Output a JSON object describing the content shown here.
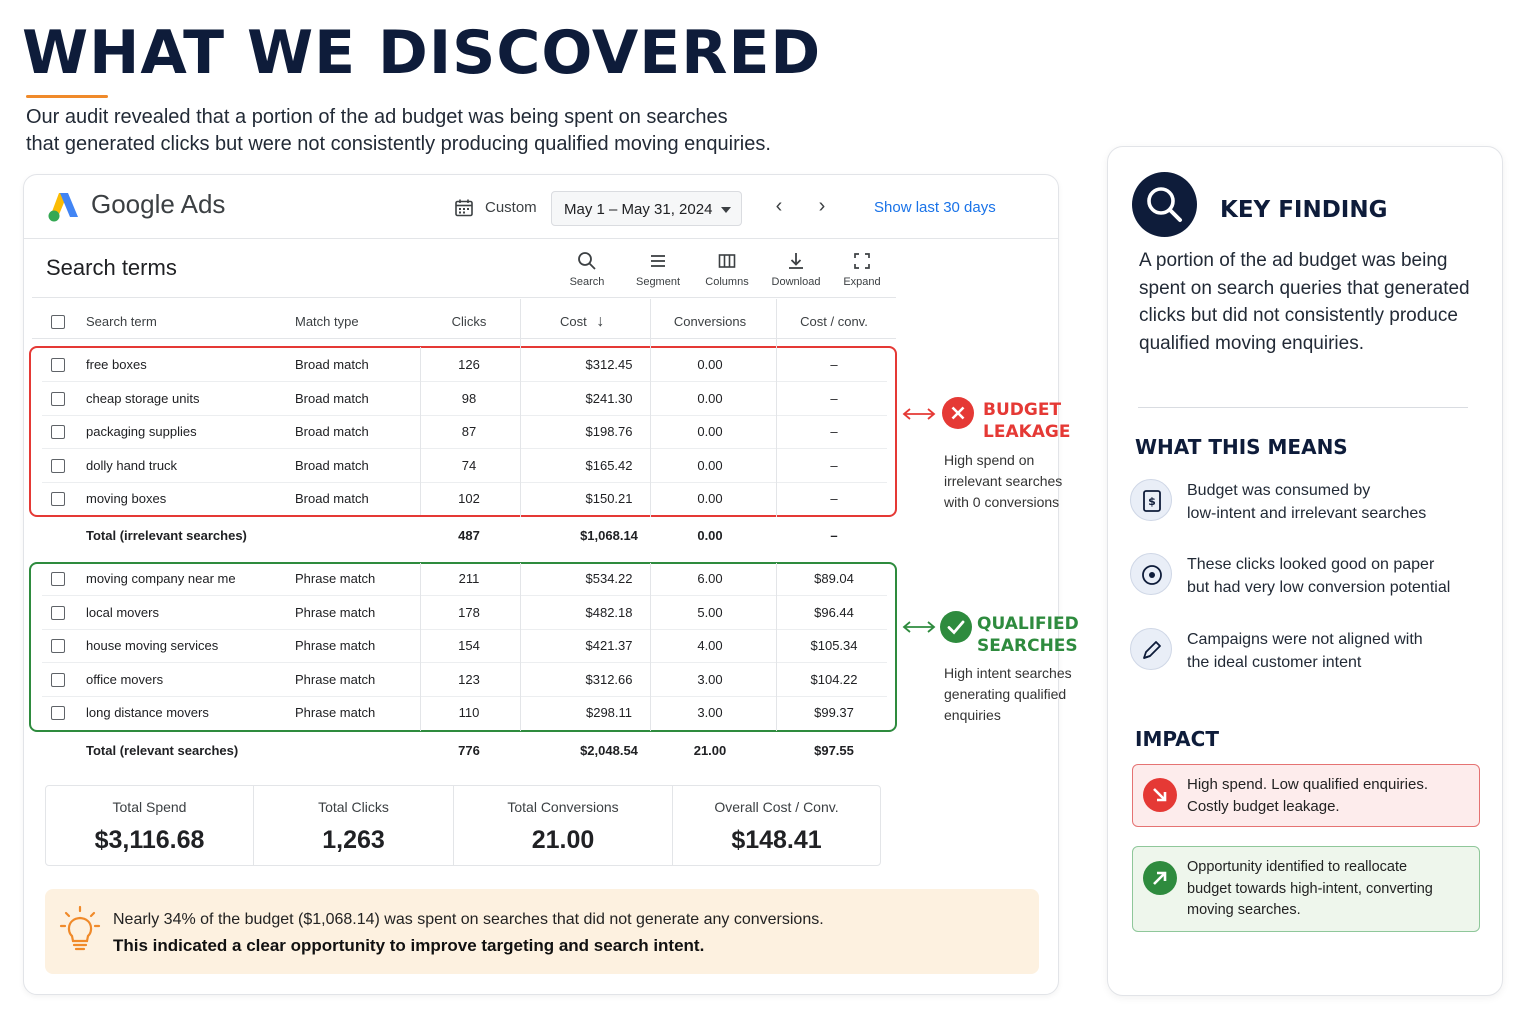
{
  "hero": {
    "title": "WHAT WE DISCOVERED",
    "subtitle_line1": "Our audit revealed that a portion of the ad budget was being spent on searches",
    "subtitle_line2": "that generated clicks but were not consistently producing qualified moving enquiries."
  },
  "ads": {
    "brand": "Google Ads",
    "custom_label": "Custom",
    "date_range": "May 1 – May 31, 2024",
    "show_last": "Show last 30 days",
    "section_title": "Search terms",
    "tools": [
      {
        "label": "Search",
        "icon": "search-icon"
      },
      {
        "label": "Segment",
        "icon": "menu-icon"
      },
      {
        "label": "Columns",
        "icon": "columns-icon"
      },
      {
        "label": "Download",
        "icon": "download-icon"
      },
      {
        "label": "Expand",
        "icon": "expand-icon"
      }
    ],
    "headers": {
      "term": "Search term",
      "match": "Match type",
      "clicks": "Clicks",
      "cost": "Cost",
      "conversions": "Conversions",
      "cost_conv": "Cost / conv."
    },
    "irrelevant_rows": [
      {
        "term": "free boxes",
        "match": "Broad match",
        "clicks": "126",
        "cost": "$312.45",
        "conv": "0.00",
        "cpc": "–"
      },
      {
        "term": "cheap storage units",
        "match": "Broad match",
        "clicks": "98",
        "cost": "$241.30",
        "conv": "0.00",
        "cpc": "–"
      },
      {
        "term": "packaging supplies",
        "match": "Broad match",
        "clicks": "87",
        "cost": "$198.76",
        "conv": "0.00",
        "cpc": "–"
      },
      {
        "term": "dolly hand truck",
        "match": "Broad match",
        "clicks": "74",
        "cost": "$165.42",
        "conv": "0.00",
        "cpc": "–"
      },
      {
        "term": "moving boxes",
        "match": "Broad match",
        "clicks": "102",
        "cost": "$150.21",
        "conv": "0.00",
        "cpc": "–"
      }
    ],
    "irrelevant_total": {
      "label": "Total (irrelevant searches)",
      "clicks": "487",
      "cost": "$1,068.14",
      "conv": "0.00",
      "cpc": "–"
    },
    "relevant_rows": [
      {
        "term": "moving company near me",
        "match": "Phrase match",
        "clicks": "211",
        "cost": "$534.22",
        "conv": "6.00",
        "cpc": "$89.04"
      },
      {
        "term": "local movers",
        "match": "Phrase match",
        "clicks": "178",
        "cost": "$482.18",
        "conv": "5.00",
        "cpc": "$96.44"
      },
      {
        "term": "house moving services",
        "match": "Phrase match",
        "clicks": "154",
        "cost": "$421.37",
        "conv": "4.00",
        "cpc": "$105.34"
      },
      {
        "term": "office movers",
        "match": "Phrase match",
        "clicks": "123",
        "cost": "$312.66",
        "conv": "3.00",
        "cpc": "$104.22"
      },
      {
        "term": "long distance movers",
        "match": "Phrase match",
        "clicks": "110",
        "cost": "$298.11",
        "conv": "3.00",
        "cpc": "$99.37"
      }
    ],
    "relevant_total": {
      "label": "Total (relevant searches)",
      "clicks": "776",
      "cost": "$2,048.54",
      "conv": "21.00",
      "cpc": "$97.55"
    },
    "summary": [
      {
        "label": "Total Spend",
        "value": "$3,116.68"
      },
      {
        "label": "Total Clicks",
        "value": "1,263"
      },
      {
        "label": "Total Conversions",
        "value": "21.00"
      },
      {
        "label": "Overall Cost / Conv.",
        "value": "$148.41"
      }
    ],
    "insight_line1": "Nearly 34% of the budget ($1,068.14) was spent on searches that did not generate any conversions.",
    "insight_line2": "This indicated a clear opportunity to improve targeting and search intent."
  },
  "callouts": {
    "leak_title_1": "BUDGET",
    "leak_title_2": "LEAKAGE",
    "leak_desc_1": "High spend on",
    "leak_desc_2": "irrelevant searches",
    "leak_desc_3": "with 0 conversions",
    "qual_title_1": "QUALIFIED",
    "qual_title_2": "SEARCHES",
    "qual_desc_1": "High intent searches",
    "qual_desc_2": "generating qualified",
    "qual_desc_3": "enquiries"
  },
  "key_finding": {
    "title": "KEY FINDING",
    "text": "A portion of the ad budget was being spent on search queries that generated clicks but did not consistently produce qualified moving enquiries.",
    "means_title": "WHAT THIS MEANS",
    "means": [
      {
        "icon": "budget-icon",
        "line1": "Budget was consumed by",
        "line2": "low-intent and irrelevant searches"
      },
      {
        "icon": "target-icon",
        "line1": "These clicks looked good on paper",
        "line2": "but had very low conversion potential"
      },
      {
        "icon": "pen-icon",
        "line1": "Campaigns were not aligned with",
        "line2": "the ideal customer intent"
      }
    ],
    "impact_title": "IMPACT",
    "impact_bad_1": "High spend. Low qualified enquiries.",
    "impact_bad_2": "Costly budget leakage.",
    "impact_good_1": "Opportunity identified to reallocate",
    "impact_good_2": "budget towards high-intent, converting",
    "impact_good_3": "moving searches."
  },
  "colors": {
    "navy": "#0e1c3a",
    "red": "#e53935",
    "green": "#2e8b3e",
    "orange": "#f08a2a",
    "link_blue": "#1a73e8"
  }
}
